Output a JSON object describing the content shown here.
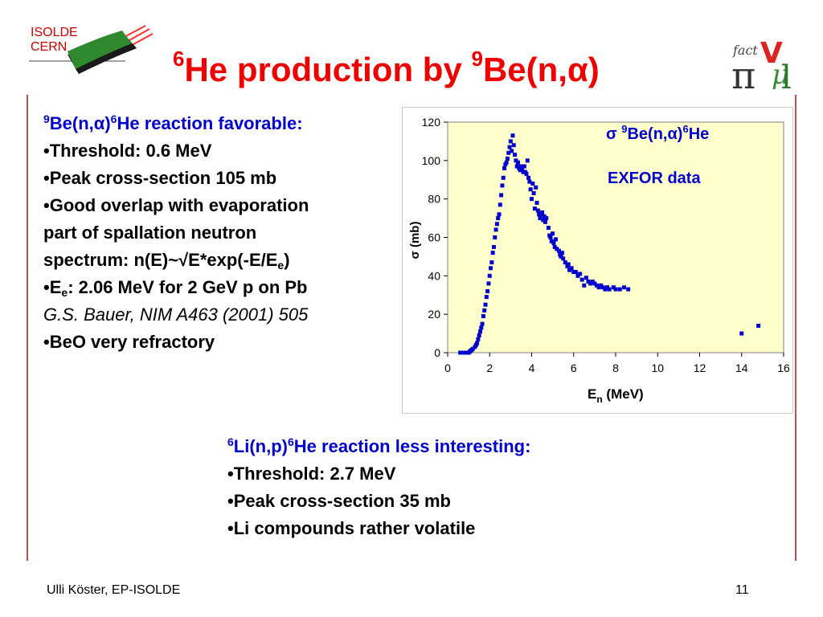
{
  "logo": {
    "line1": "ISOLDE",
    "line2": "CERN"
  },
  "title": {
    "pre_sup": "6",
    "part1": "He production by ",
    "sup2": "9",
    "part2": "Be(n,",
    "alpha": "α",
    "close": ")"
  },
  "left": {
    "heading": {
      "sup1": "9",
      "be": "Be(n,",
      "alpha": "α",
      "close": ")",
      "sup2": "6",
      "rest": "He reaction favorable:"
    },
    "b1": "•Threshold: 0.6 MeV",
    "b2": "•Peak cross-section 105 mb",
    "b3a": "•Good overlap with evaporation",
    "b3b": "part of spallation neutron",
    "b3c_pre": "spectrum: n(E)~√E*exp(-E/E",
    "b3c_sub": "e",
    "b3c_post": ")",
    "b4_pre": "•E",
    "b4_sub": "e",
    "b4_post": ": 2.06 MeV for 2 GeV p on Pb",
    "cite": "G.S. Bauer, NIM A463 (2001) 505",
    "b5": "•BeO very refractory"
  },
  "bottom": {
    "heading": {
      "sup1": "6",
      "li": "Li(n,p)",
      "sup2": "6",
      "rest": "He reaction less interesting:"
    },
    "b1": "•Threshold: 2.7 MeV",
    "b2": "•Peak cross-section 35 mb",
    "b3": "•Li compounds rather volatile"
  },
  "footer": {
    "author": "Ulli Köster, EP-ISOLDE",
    "page": "11"
  },
  "colors": {
    "title": "#ee0000",
    "blue_text": "#0000cc",
    "plot_bg": "#ffffcc",
    "points": "#0000cc",
    "rule": "#c05050"
  },
  "chart_data": {
    "type": "scatter",
    "legend": {
      "sigma": "σ",
      "sup1": "9",
      "be": "Be(n,",
      "alpha": "α",
      "close": ")",
      "sup2": "6",
      "he": "He"
    },
    "annotation": "EXFOR data",
    "xlabel": {
      "main": "E",
      "sub": "n",
      "unit": " (MeV)"
    },
    "ylabel": "σ (mb)",
    "xlim": [
      0,
      16
    ],
    "ylim": [
      0,
      120
    ],
    "xticks": [
      0,
      2,
      4,
      6,
      8,
      10,
      12,
      14,
      16
    ],
    "yticks": [
      0,
      20,
      40,
      60,
      80,
      100,
      120
    ],
    "grid": false,
    "series": [
      {
        "points": [
          [
            0.6,
            0
          ],
          [
            0.7,
            0
          ],
          [
            0.8,
            0
          ],
          [
            0.9,
            0
          ],
          [
            1.0,
            0
          ],
          [
            1.05,
            0.5
          ],
          [
            1.1,
            1
          ],
          [
            1.15,
            1.5
          ],
          [
            1.2,
            2
          ],
          [
            1.3,
            3
          ],
          [
            1.35,
            4
          ],
          [
            1.4,
            5
          ],
          [
            1.45,
            7
          ],
          [
            1.5,
            9
          ],
          [
            1.55,
            11
          ],
          [
            1.6,
            13
          ],
          [
            1.65,
            15
          ],
          [
            1.7,
            19
          ],
          [
            1.75,
            22
          ],
          [
            1.8,
            25
          ],
          [
            1.85,
            29
          ],
          [
            1.9,
            32
          ],
          [
            1.95,
            36
          ],
          [
            2.0,
            40
          ],
          [
            2.05,
            44
          ],
          [
            2.1,
            47
          ],
          [
            2.15,
            52
          ],
          [
            2.2,
            55
          ],
          [
            2.25,
            60
          ],
          [
            2.3,
            64
          ],
          [
            2.35,
            67
          ],
          [
            2.4,
            70
          ],
          [
            2.45,
            72
          ],
          [
            2.5,
            77
          ],
          [
            2.55,
            82
          ],
          [
            2.6,
            87
          ],
          [
            2.65,
            91
          ],
          [
            2.7,
            96
          ],
          [
            2.75,
            98
          ],
          [
            2.8,
            99
          ],
          [
            2.85,
            101
          ],
          [
            2.9,
            104
          ],
          [
            2.95,
            107
          ],
          [
            3.0,
            110
          ],
          [
            3.05,
            105
          ],
          [
            3.1,
            113
          ],
          [
            3.15,
            108
          ],
          [
            3.2,
            103
          ],
          [
            3.25,
            100
          ],
          [
            3.3,
            97
          ],
          [
            3.35,
            99
          ],
          [
            3.4,
            96
          ],
          [
            3.45,
            95
          ],
          [
            3.5,
            97
          ],
          [
            3.55,
            96
          ],
          [
            3.6,
            94
          ],
          [
            3.65,
            97
          ],
          [
            3.7,
            94
          ],
          [
            3.75,
            93
          ],
          [
            3.8,
            100
          ],
          [
            3.85,
            91
          ],
          [
            3.9,
            89
          ],
          [
            3.95,
            85
          ],
          [
            4.0,
            80
          ],
          [
            4.05,
            88
          ],
          [
            4.1,
            83
          ],
          [
            4.15,
            75
          ],
          [
            4.2,
            86
          ],
          [
            4.25,
            78
          ],
          [
            4.3,
            74
          ],
          [
            4.35,
            72
          ],
          [
            4.4,
            70
          ],
          [
            4.45,
            72
          ],
          [
            4.5,
            73
          ],
          [
            4.55,
            69
          ],
          [
            4.6,
            71
          ],
          [
            4.65,
            68
          ],
          [
            4.7,
            70
          ],
          [
            4.8,
            65
          ],
          [
            4.85,
            61
          ],
          [
            4.9,
            60
          ],
          [
            4.95,
            58
          ],
          [
            5.0,
            62
          ],
          [
            5.05,
            57
          ],
          [
            5.1,
            55
          ],
          [
            5.15,
            59
          ],
          [
            5.2,
            54
          ],
          [
            5.3,
            53
          ],
          [
            5.35,
            51
          ],
          [
            5.4,
            50
          ],
          [
            5.45,
            52
          ],
          [
            5.5,
            49
          ],
          [
            5.6,
            47
          ],
          [
            5.7,
            45
          ],
          [
            5.75,
            46
          ],
          [
            5.8,
            43
          ],
          [
            5.9,
            44
          ],
          [
            6.0,
            42
          ],
          [
            6.1,
            42
          ],
          [
            6.2,
            40
          ],
          [
            6.3,
            41
          ],
          [
            6.4,
            38
          ],
          [
            6.5,
            35
          ],
          [
            6.6,
            39
          ],
          [
            6.7,
            37
          ],
          [
            6.8,
            36
          ],
          [
            6.9,
            37
          ],
          [
            7.0,
            36
          ],
          [
            7.1,
            35
          ],
          [
            7.2,
            34
          ],
          [
            7.3,
            35
          ],
          [
            7.4,
            34
          ],
          [
            7.5,
            33
          ],
          [
            7.6,
            34
          ],
          [
            7.7,
            33
          ],
          [
            7.9,
            34
          ],
          [
            8.0,
            33
          ],
          [
            8.2,
            33
          ],
          [
            8.4,
            34
          ],
          [
            8.6,
            33
          ],
          [
            14.0,
            10
          ],
          [
            14.8,
            14
          ]
        ]
      }
    ]
  }
}
